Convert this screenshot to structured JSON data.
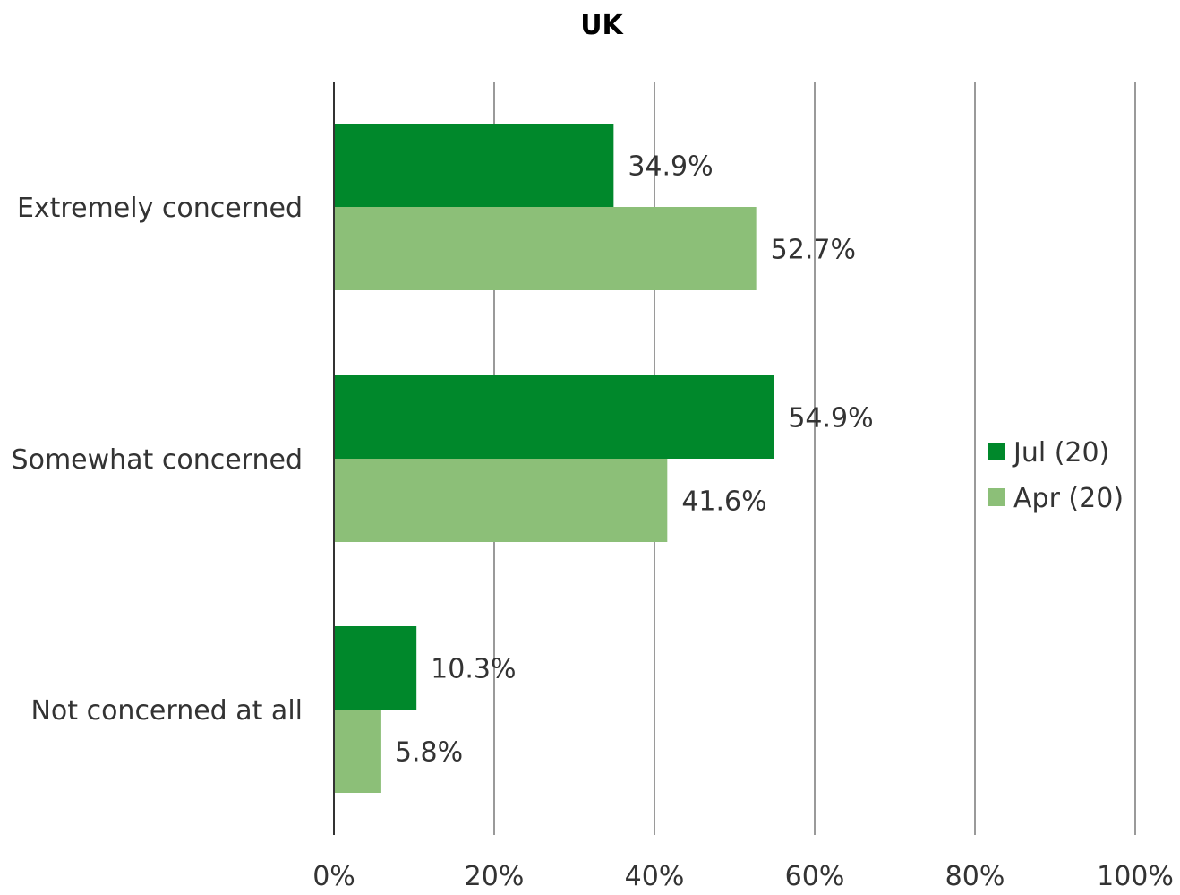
{
  "chart_data": {
    "type": "bar",
    "orientation": "horizontal",
    "title": "UK",
    "xlabel": "",
    "ylabel": "",
    "categories": [
      "Extremely concerned",
      "Somewhat concerned",
      "Not concerned at all"
    ],
    "series": [
      {
        "name": "Jul (20)",
        "color": "#00882b",
        "values": [
          34.9,
          54.9,
          10.3
        ],
        "labels": [
          "34.9%",
          "54.9%",
          "10.3%"
        ]
      },
      {
        "name": "Apr (20)",
        "color": "#8cbf78",
        "values": [
          52.7,
          41.6,
          5.8
        ],
        "labels": [
          "52.7%",
          "41.6%",
          "5.8%"
        ]
      }
    ],
    "xlim": [
      0,
      100
    ],
    "xticks": [
      0,
      20,
      40,
      60,
      80,
      100
    ],
    "xtick_labels": [
      "0%",
      "20%",
      "40%",
      "60%",
      "80%",
      "100%"
    ],
    "grid": "vertical",
    "legend_position": "right"
  }
}
